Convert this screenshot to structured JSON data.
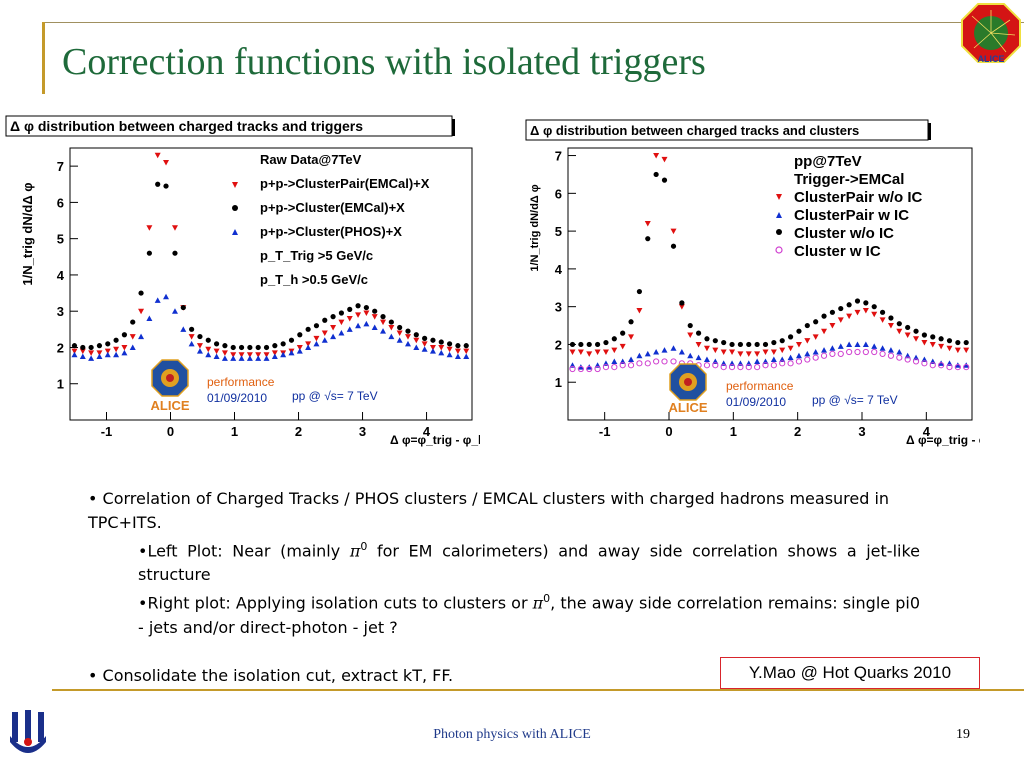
{
  "slide": {
    "title": "Correction functions with isolated triggers",
    "corner_logo_text": "ALICE",
    "footer_text": "Photon physics with ALICE",
    "page_number": "19",
    "credit": "Y.Mao @ Hot Quarks 2010"
  },
  "bullets": {
    "b1": "• Correlation of Charged Tracks / PHOS clusters / EMCAL clusters with charged hadrons measured in TPC+ITS.",
    "b2_pre": "•Left Plot: Near (mainly ",
    "b2_post": " for EM calorimeters) and away side correlation shows a jet-like structure",
    "b3_pre": "•Right plot: Applying isolation cuts to clusters or ",
    "b3_post": ", the away side correlation remains: single pi0 - jets and/or direct-photon - jet ?",
    "b4": "• Consolidate the isolation cut, extract kT, FF.",
    "pi_symbol": "π",
    "pi_superscript": "0"
  },
  "chart_data": [
    {
      "type": "scatter",
      "title": "Δ φ distribution between charged tracks and triggers",
      "ylabel": "1/N_trig dN/dΔ φ",
      "xlabel": "Δ φ=φ_trig - φ_h±",
      "xlim": [
        -1.57,
        4.71
      ],
      "ylim": [
        0,
        7.5
      ],
      "xticks": [
        "-1",
        "0",
        "1",
        "2",
        "3",
        "4"
      ],
      "yticks": [
        "1",
        "2",
        "3",
        "4",
        "5",
        "6",
        "7"
      ],
      "legend_position": "top-right",
      "legend_lines": [
        "Raw Data@7TeV",
        "p+p->ClusterPair(EMCal)+X",
        "p+p->Cluster(EMCal)+X",
        "p+p->Cluster(PHOS)+X",
        "p_T_Trig >5 GeV/c",
        "p_T_h >0.5 GeV/c"
      ],
      "watermark": {
        "label": "performance",
        "date": "01/09/2010",
        "energy": "pp @ √s= 7 TeV",
        "logo": "ALICE"
      },
      "series": [
        {
          "name": "p+p->ClusterPair(EMCal)+X",
          "marker": "triangle-down",
          "color": "#e01010",
          "x": [
            -1.5,
            -1.37,
            -1.24,
            -1.11,
            -0.98,
            -0.85,
            -0.72,
            -0.59,
            -0.46,
            -0.33,
            -0.2,
            -0.07,
            0.07,
            0.2,
            0.33,
            0.46,
            0.59,
            0.72,
            0.85,
            0.98,
            1.11,
            1.24,
            1.37,
            1.5,
            1.63,
            1.76,
            1.89,
            2.02,
            2.15,
            2.28,
            2.41,
            2.54,
            2.67,
            2.8,
            2.93,
            3.06,
            3.19,
            3.32,
            3.45,
            3.58,
            3.71,
            3.84,
            3.97,
            4.1,
            4.23,
            4.36,
            4.49,
            4.62
          ],
          "y": [
            1.9,
            1.9,
            1.85,
            1.85,
            1.9,
            1.95,
            2.0,
            2.3,
            3.0,
            5.3,
            7.3,
            7.1,
            5.3,
            3.1,
            2.3,
            2.05,
            1.95,
            1.9,
            1.85,
            1.8,
            1.8,
            1.8,
            1.8,
            1.8,
            1.85,
            1.85,
            1.9,
            2.0,
            2.1,
            2.25,
            2.4,
            2.55,
            2.7,
            2.8,
            2.9,
            2.95,
            2.85,
            2.7,
            2.55,
            2.4,
            2.3,
            2.2,
            2.1,
            2.0,
            2.0,
            1.95,
            1.9,
            1.9
          ]
        },
        {
          "name": "p+p->Cluster(EMCal)+X",
          "marker": "circle",
          "color": "#000000",
          "x": [
            -1.5,
            -1.37,
            -1.24,
            -1.11,
            -0.98,
            -0.85,
            -0.72,
            -0.59,
            -0.46,
            -0.33,
            -0.2,
            -0.07,
            0.07,
            0.2,
            0.33,
            0.46,
            0.59,
            0.72,
            0.85,
            0.98,
            1.11,
            1.24,
            1.37,
            1.5,
            1.63,
            1.76,
            1.89,
            2.02,
            2.15,
            2.28,
            2.41,
            2.54,
            2.67,
            2.8,
            2.93,
            3.06,
            3.19,
            3.32,
            3.45,
            3.58,
            3.71,
            3.84,
            3.97,
            4.1,
            4.23,
            4.36,
            4.49,
            4.62
          ],
          "y": [
            2.05,
            2.0,
            2.0,
            2.05,
            2.1,
            2.2,
            2.35,
            2.7,
            3.5,
            4.6,
            6.5,
            6.45,
            4.6,
            3.1,
            2.5,
            2.3,
            2.2,
            2.1,
            2.05,
            2.0,
            2.0,
            2.0,
            2.0,
            2.0,
            2.05,
            2.1,
            2.2,
            2.35,
            2.5,
            2.6,
            2.75,
            2.85,
            2.95,
            3.05,
            3.15,
            3.1,
            3.0,
            2.85,
            2.7,
            2.55,
            2.45,
            2.35,
            2.25,
            2.2,
            2.15,
            2.1,
            2.05,
            2.05
          ]
        },
        {
          "name": "p+p->Cluster(PHOS)+X",
          "marker": "triangle-up",
          "color": "#1030d0",
          "x": [
            -1.5,
            -1.37,
            -1.24,
            -1.11,
            -0.98,
            -0.85,
            -0.72,
            -0.59,
            -0.46,
            -0.33,
            -0.2,
            -0.07,
            0.07,
            0.2,
            0.33,
            0.46,
            0.59,
            0.72,
            0.85,
            0.98,
            1.11,
            1.24,
            1.37,
            1.5,
            1.63,
            1.76,
            1.89,
            2.02,
            2.15,
            2.28,
            2.41,
            2.54,
            2.67,
            2.8,
            2.93,
            3.06,
            3.19,
            3.32,
            3.45,
            3.58,
            3.71,
            3.84,
            3.97,
            4.1,
            4.23,
            4.36,
            4.49,
            4.62
          ],
          "y": [
            1.8,
            1.75,
            1.7,
            1.75,
            1.8,
            1.8,
            1.85,
            2.0,
            2.3,
            2.8,
            3.3,
            3.4,
            3.0,
            2.5,
            2.1,
            1.9,
            1.8,
            1.75,
            1.7,
            1.7,
            1.7,
            1.7,
            1.7,
            1.7,
            1.75,
            1.8,
            1.85,
            1.9,
            2.0,
            2.1,
            2.2,
            2.3,
            2.4,
            2.5,
            2.6,
            2.65,
            2.55,
            2.45,
            2.3,
            2.2,
            2.1,
            2.0,
            1.95,
            1.9,
            1.85,
            1.8,
            1.75,
            1.75
          ]
        }
      ]
    },
    {
      "type": "scatter",
      "title": "Δ φ distribution between charged tracks and clusters",
      "ylabel": "1/N_trig dN/dΔ φ",
      "xlabel": "Δ φ=φ_trig - φ_h±",
      "xlim": [
        -1.57,
        4.71
      ],
      "ylim": [
        0,
        7.2
      ],
      "xticks": [
        "-1",
        "0",
        "1",
        "2",
        "3",
        "4"
      ],
      "yticks": [
        "1",
        "2",
        "3",
        "4",
        "5",
        "6",
        "7"
      ],
      "legend_position": "top-right",
      "legend_lines": [
        "pp@7TeV",
        "Trigger->EMCal",
        "ClusterPair w/o IC",
        "ClusterPair w IC",
        "Cluster w/o IC",
        "Cluster w IC"
      ],
      "watermark": {
        "label": "performance",
        "date": "01/09/2010",
        "energy": "pp @ √s= 7 TeV",
        "logo": "ALICE"
      },
      "series": [
        {
          "name": "ClusterPair w/o IC",
          "marker": "triangle-down",
          "color": "#e01010",
          "x": [
            -1.5,
            -1.37,
            -1.24,
            -1.11,
            -0.98,
            -0.85,
            -0.72,
            -0.59,
            -0.46,
            -0.33,
            -0.2,
            -0.07,
            0.07,
            0.2,
            0.33,
            0.46,
            0.59,
            0.72,
            0.85,
            0.98,
            1.11,
            1.24,
            1.37,
            1.5,
            1.63,
            1.76,
            1.89,
            2.02,
            2.15,
            2.28,
            2.41,
            2.54,
            2.67,
            2.8,
            2.93,
            3.06,
            3.19,
            3.32,
            3.45,
            3.58,
            3.71,
            3.84,
            3.97,
            4.1,
            4.23,
            4.36,
            4.49,
            4.62
          ],
          "y": [
            1.8,
            1.8,
            1.75,
            1.8,
            1.8,
            1.85,
            1.95,
            2.2,
            2.9,
            5.2,
            7.0,
            6.9,
            5.0,
            3.0,
            2.25,
            2.0,
            1.9,
            1.85,
            1.8,
            1.8,
            1.75,
            1.75,
            1.75,
            1.8,
            1.8,
            1.85,
            1.9,
            2.0,
            2.1,
            2.2,
            2.35,
            2.5,
            2.65,
            2.75,
            2.85,
            2.9,
            2.8,
            2.65,
            2.5,
            2.35,
            2.25,
            2.15,
            2.05,
            2.0,
            1.95,
            1.9,
            1.85,
            1.85
          ]
        },
        {
          "name": "ClusterPair w IC",
          "marker": "triangle-up",
          "color": "#1030d0",
          "x": [
            -1.5,
            -1.37,
            -1.24,
            -1.11,
            -0.98,
            -0.85,
            -0.72,
            -0.59,
            -0.46,
            -0.33,
            -0.2,
            -0.07,
            0.07,
            0.2,
            0.33,
            0.46,
            0.59,
            0.72,
            0.85,
            0.98,
            1.11,
            1.24,
            1.37,
            1.5,
            1.63,
            1.76,
            1.89,
            2.02,
            2.15,
            2.28,
            2.41,
            2.54,
            2.67,
            2.8,
            2.93,
            3.06,
            3.19,
            3.32,
            3.45,
            3.58,
            3.71,
            3.84,
            3.97,
            4.1,
            4.23,
            4.36,
            4.49,
            4.62
          ],
          "y": [
            1.45,
            1.4,
            1.4,
            1.45,
            1.5,
            1.55,
            1.55,
            1.6,
            1.7,
            1.75,
            1.8,
            1.85,
            1.9,
            1.8,
            1.7,
            1.65,
            1.6,
            1.55,
            1.5,
            1.5,
            1.5,
            1.5,
            1.55,
            1.55,
            1.6,
            1.6,
            1.65,
            1.7,
            1.75,
            1.8,
            1.85,
            1.9,
            1.95,
            2.0,
            2.0,
            2.0,
            1.95,
            1.9,
            1.85,
            1.8,
            1.7,
            1.65,
            1.6,
            1.55,
            1.5,
            1.5,
            1.45,
            1.45
          ]
        },
        {
          "name": "Cluster w/o IC",
          "marker": "circle",
          "color": "#000000",
          "x": [
            -1.5,
            -1.37,
            -1.24,
            -1.11,
            -0.98,
            -0.85,
            -0.72,
            -0.59,
            -0.46,
            -0.33,
            -0.2,
            -0.07,
            0.07,
            0.2,
            0.33,
            0.46,
            0.59,
            0.72,
            0.85,
            0.98,
            1.11,
            1.24,
            1.37,
            1.5,
            1.63,
            1.76,
            1.89,
            2.02,
            2.15,
            2.28,
            2.41,
            2.54,
            2.67,
            2.8,
            2.93,
            3.06,
            3.19,
            3.32,
            3.45,
            3.58,
            3.71,
            3.84,
            3.97,
            4.1,
            4.23,
            4.36,
            4.49,
            4.62
          ],
          "y": [
            2.0,
            2.0,
            2.0,
            2.0,
            2.05,
            2.15,
            2.3,
            2.6,
            3.4,
            4.8,
            6.5,
            6.35,
            4.6,
            3.1,
            2.5,
            2.3,
            2.15,
            2.1,
            2.05,
            2.0,
            2.0,
            2.0,
            2.0,
            2.0,
            2.05,
            2.1,
            2.2,
            2.35,
            2.5,
            2.6,
            2.75,
            2.85,
            2.95,
            3.05,
            3.15,
            3.1,
            3.0,
            2.85,
            2.7,
            2.55,
            2.45,
            2.35,
            2.25,
            2.2,
            2.15,
            2.1,
            2.05,
            2.05
          ]
        },
        {
          "name": "Cluster w IC",
          "marker": "circle-open",
          "color": "#d040d0",
          "x": [
            -1.5,
            -1.37,
            -1.24,
            -1.11,
            -0.98,
            -0.85,
            -0.72,
            -0.59,
            -0.46,
            -0.33,
            -0.2,
            -0.07,
            0.07,
            0.2,
            0.33,
            0.46,
            0.59,
            0.72,
            0.85,
            0.98,
            1.11,
            1.24,
            1.37,
            1.5,
            1.63,
            1.76,
            1.89,
            2.02,
            2.15,
            2.28,
            2.41,
            2.54,
            2.67,
            2.8,
            2.93,
            3.06,
            3.19,
            3.32,
            3.45,
            3.58,
            3.71,
            3.84,
            3.97,
            4.1,
            4.23,
            4.36,
            4.49,
            4.62
          ],
          "y": [
            1.35,
            1.35,
            1.35,
            1.35,
            1.4,
            1.4,
            1.45,
            1.45,
            1.5,
            1.5,
            1.55,
            1.55,
            1.55,
            1.5,
            1.5,
            1.45,
            1.45,
            1.45,
            1.4,
            1.4,
            1.4,
            1.4,
            1.4,
            1.45,
            1.45,
            1.5,
            1.5,
            1.55,
            1.6,
            1.65,
            1.7,
            1.75,
            1.75,
            1.8,
            1.8,
            1.8,
            1.8,
            1.75,
            1.7,
            1.65,
            1.6,
            1.55,
            1.5,
            1.45,
            1.45,
            1.4,
            1.4,
            1.4
          ]
        }
      ]
    }
  ]
}
